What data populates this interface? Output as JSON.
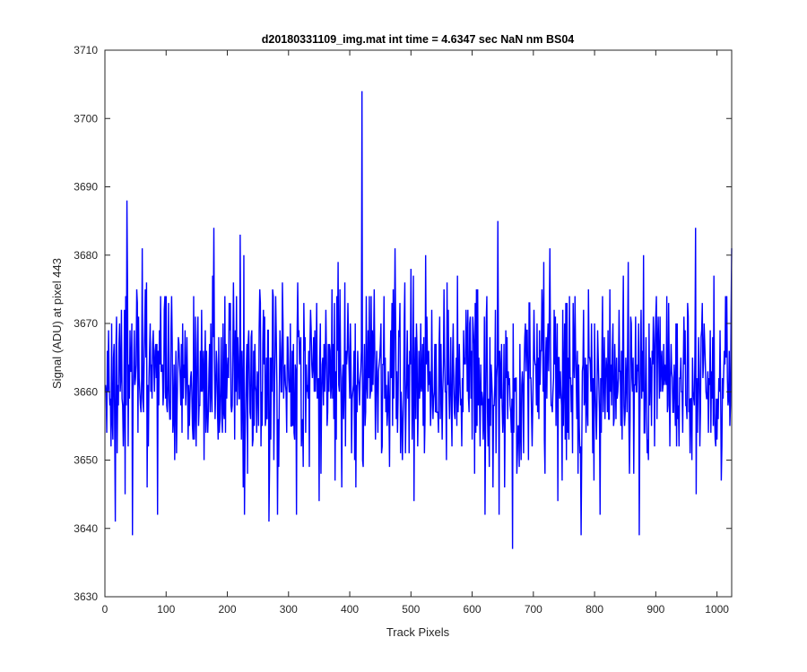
{
  "chart_data": {
    "type": "line",
    "title": "d20180331109_img.mat int time = 4.6347 sec  NaN nm BS04",
    "xlabel": "Track Pixels",
    "ylabel": "Signal (ADU) at pixel 443",
    "xlim": [
      0,
      1024
    ],
    "ylim": [
      3630,
      3710
    ],
    "xticks": [
      0,
      100,
      200,
      300,
      400,
      500,
      600,
      700,
      800,
      900,
      1000
    ],
    "yticks": [
      3630,
      3640,
      3650,
      3660,
      3670,
      3680,
      3690,
      3700,
      3710
    ],
    "grid": false,
    "series": [
      {
        "color": "#0000ff",
        "n_points": 1024,
        "mean": 3662,
        "std": 7,
        "x_start": 1,
        "x_end": 1024,
        "peaks": [
          {
            "x": 420,
            "y": 3704
          },
          {
            "x": 36,
            "y": 3688
          },
          {
            "x": 178,
            "y": 3684
          },
          {
            "x": 642,
            "y": 3685
          },
          {
            "x": 965,
            "y": 3684
          },
          {
            "x": 221,
            "y": 3683
          }
        ],
        "troughs": [
          {
            "x": 45,
            "y": 3639
          },
          {
            "x": 666,
            "y": 3637
          },
          {
            "x": 778,
            "y": 3639
          },
          {
            "x": 873,
            "y": 3639
          },
          {
            "x": 268,
            "y": 3641
          },
          {
            "x": 17,
            "y": 3641
          }
        ]
      }
    ]
  }
}
